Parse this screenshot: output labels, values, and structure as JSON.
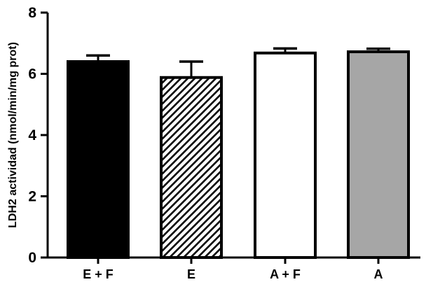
{
  "chart_data": {
    "type": "bar",
    "categories": [
      "E + F",
      "E",
      "A + F",
      "A"
    ],
    "values": [
      6.4,
      5.88,
      6.68,
      6.72
    ],
    "error_upper": [
      0.2,
      0.52,
      0.15,
      0.1
    ],
    "fills": [
      "solid-black",
      "hatched",
      "white",
      "gray"
    ],
    "colors": {
      "black": "#000000",
      "gray": "#a6a6a6",
      "white": "#ffffff"
    },
    "ylabel": "LDH2 actividad  (nmol/min/mg prot)",
    "xlabel": "",
    "ylim": [
      0,
      8
    ],
    "yticks": [
      0,
      2,
      4,
      6,
      8
    ],
    "grid": false
  }
}
